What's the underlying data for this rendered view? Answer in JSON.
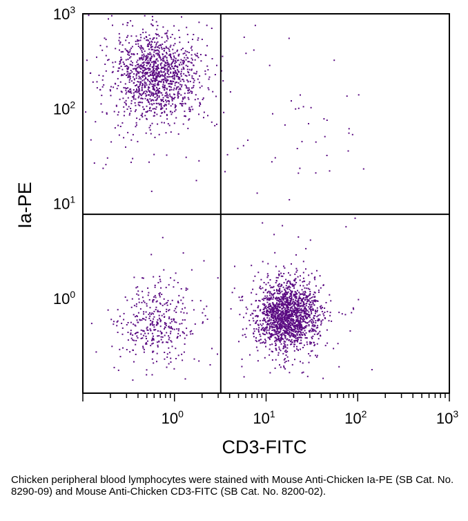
{
  "chart_data": {
    "type": "scatter",
    "title": "",
    "xlabel": "CD3-FITC",
    "ylabel": "Ia-PE",
    "xscale": "log",
    "yscale": "log",
    "xlim": [
      0.1,
      1000
    ],
    "ylim": [
      0.1,
      1000
    ],
    "x_tick_labels": [
      {
        "base": "10",
        "exp": "0",
        "value": 1
      },
      {
        "base": "10",
        "exp": "1",
        "value": 10
      },
      {
        "base": "10",
        "exp": "2",
        "value": 100
      },
      {
        "base": "10",
        "exp": "3",
        "value": 1000
      }
    ],
    "y_tick_labels": [
      {
        "base": "10",
        "exp": "0",
        "value": 1
      },
      {
        "base": "10",
        "exp": "1",
        "value": 10
      },
      {
        "base": "10",
        "exp": "2",
        "value": 100
      },
      {
        "base": "10",
        "exp": "3",
        "value": 1000
      }
    ],
    "quadrant_gates": {
      "x": 3.2,
      "y": 7.7
    },
    "point_color": "#5a0a82",
    "populations": [
      {
        "quadrant": "upper-left",
        "center": [
          0.63,
          220
        ],
        "spread": [
          0.22,
          0.23
        ],
        "n": 1300
      },
      {
        "quadrant": "lower-right",
        "center": [
          17,
          0.68
        ],
        "spread": [
          0.16,
          0.17
        ],
        "n": 1700
      },
      {
        "quadrant": "lower-left",
        "center": [
          0.62,
          0.58
        ],
        "spread": [
          0.2,
          0.2
        ],
        "n": 380
      },
      {
        "quadrant": "upper-right",
        "center": [
          20,
          60
        ],
        "spread": [
          0.35,
          0.45
        ],
        "n": 45
      }
    ],
    "grid": false,
    "legend": "none"
  },
  "caption": "Chicken peripheral blood lymphocytes were stained with Mouse Anti-Chicken Ia-PE (SB Cat. No. 8290-09) and Mouse Anti-Chicken CD3-FITC (SB Cat. No. 8200-02)."
}
